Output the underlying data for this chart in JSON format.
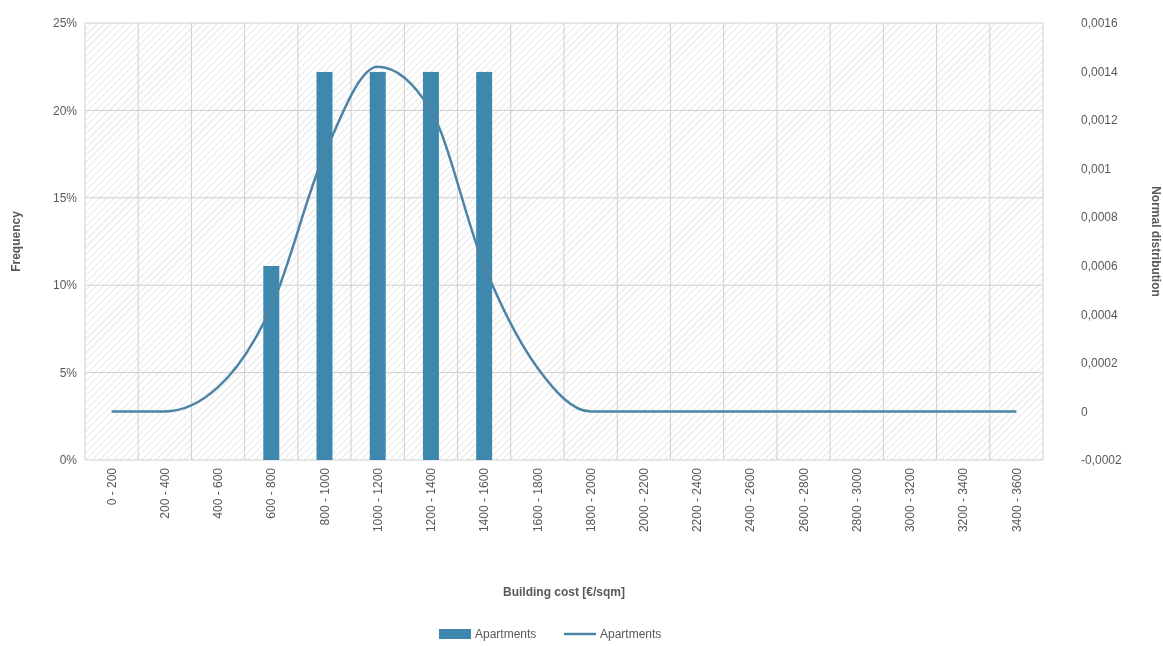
{
  "chart_data": {
    "type": "bar",
    "xlabel": "Building cost [€/sqm]",
    "ylabel": "Frequency",
    "y2label": "Normal distribution",
    "categories": [
      "0 - 200",
      "200 - 400",
      "400 - 600",
      "600 - 800",
      "800 - 1000",
      "1000 - 1200",
      "1200 - 1400",
      "1400 - 1600",
      "1600 - 1800",
      "1800 - 2000",
      "2000 - 2200",
      "2200 - 2400",
      "2400 - 2600",
      "2600 - 2800",
      "2800 - 3000",
      "3000 - 3200",
      "3200 - 3400",
      "3400 - 3600"
    ],
    "series": [
      {
        "name": "Apartments",
        "color": "#3e87ad",
        "values": [
          0,
          0,
          0,
          11.1,
          22.2,
          22.2,
          22.2,
          22.2,
          0,
          0,
          0,
          0,
          0,
          0,
          0,
          0,
          0,
          0
        ]
      },
      {
        "name": "Apartments",
        "type": "line",
        "axis": "y2",
        "color": "#4d84a6",
        "values": [
          0,
          0,
          0.0001,
          0.00043,
          0.00106,
          0.00142,
          0.00124,
          0.0006,
          0.00018,
          0,
          0,
          0,
          0,
          0,
          0,
          0,
          0,
          0
        ]
      }
    ],
    "ylim": [
      0,
      25
    ],
    "yticks": [
      {
        "value": 0,
        "label": "0%"
      },
      {
        "value": 5,
        "label": "5%"
      },
      {
        "value": 10,
        "label": "10%"
      },
      {
        "value": 15,
        "label": "15%"
      },
      {
        "value": 20,
        "label": "20%"
      },
      {
        "value": 25,
        "label": "25%"
      }
    ],
    "y2lim": [
      -0.0002,
      0.0016
    ],
    "y2ticks": [
      {
        "value": -0.0002,
        "label": "-0,0002"
      },
      {
        "value": 0,
        "label": "0"
      },
      {
        "value": 0.0002,
        "label": "0,0002"
      },
      {
        "value": 0.0004,
        "label": "0,0004"
      },
      {
        "value": 0.0006,
        "label": "0,0006"
      },
      {
        "value": 0.0008,
        "label": "0,0008"
      },
      {
        "value": 0.001,
        "label": "0,001"
      },
      {
        "value": 0.0012,
        "label": "0,0012"
      },
      {
        "value": 0.0014,
        "label": "0,0014"
      },
      {
        "value": 0.0016,
        "label": "0,0016"
      }
    ],
    "grid": true,
    "legend": "bottom"
  }
}
